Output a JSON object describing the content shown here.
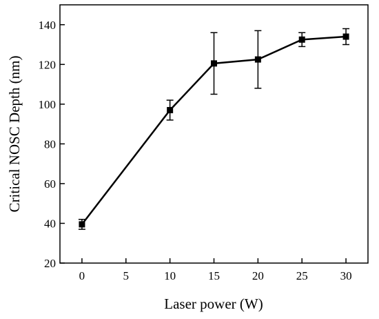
{
  "chart_data": {
    "type": "line",
    "title": "",
    "xlabel": "Laser power (W)",
    "ylabel": "Critical NOSC Depth (nm)",
    "xlim": [
      -2.5,
      32.5
    ],
    "ylim": [
      20,
      150
    ],
    "xticks": [
      0,
      5,
      10,
      15,
      20,
      25,
      30
    ],
    "yticks": [
      20,
      40,
      60,
      80,
      100,
      120,
      140
    ],
    "grid": false,
    "legend": "none",
    "marker": "square",
    "color": "#000000",
    "series": [
      {
        "x": [
          0,
          10,
          15,
          20,
          25,
          30
        ],
        "y": [
          39.5,
          97,
          120.5,
          122.5,
          132.5,
          134
        ],
        "yerr_low": [
          37,
          92,
          105,
          108,
          129,
          130
        ],
        "yerr_high": [
          42,
          102,
          136,
          137,
          136,
          138
        ]
      }
    ]
  }
}
